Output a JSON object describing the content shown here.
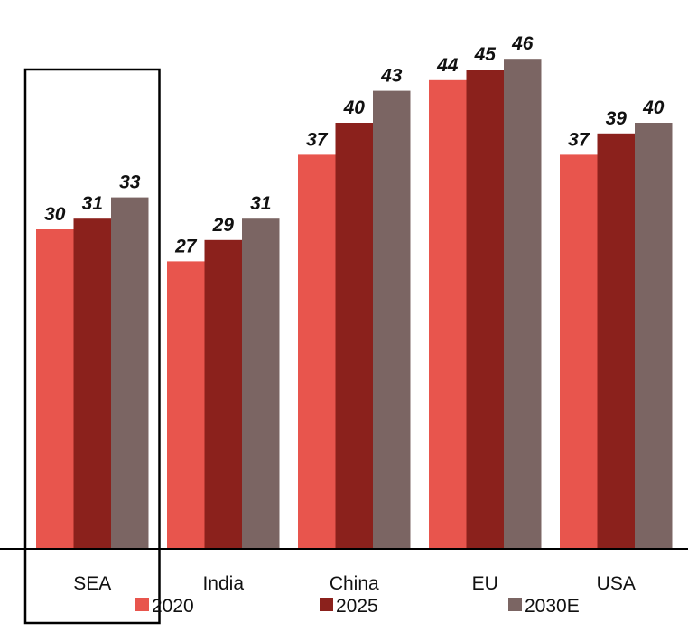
{
  "chart_data": {
    "type": "bar",
    "categories": [
      "SEA",
      "India",
      "China",
      "EU",
      "USA"
    ],
    "series": [
      {
        "name": "2020",
        "values": [
          30,
          27,
          37,
          44,
          37
        ],
        "color": "#E8554D"
      },
      {
        "name": "2025",
        "values": [
          31,
          29,
          40,
          45,
          39
        ],
        "color": "#8B211C"
      },
      {
        "name": "2030E",
        "values": [
          33,
          31,
          43,
          46,
          40
        ],
        "color": "#7B6563"
      }
    ],
    "highlighted_category": "SEA",
    "legend_position": "bottom",
    "grid": false,
    "ylim": [
      0,
      50
    ]
  }
}
